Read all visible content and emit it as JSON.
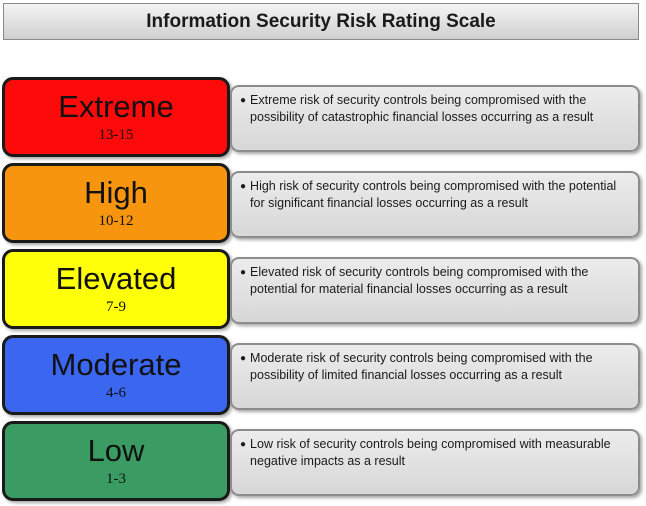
{
  "title": "Information Security Risk Rating Scale",
  "levels": [
    {
      "name": "Extreme",
      "range": "13-15",
      "color": "#ff0a0a",
      "description": "Extreme risk of security controls being compromised with the possibility of catastrophic financial losses occurring as a result"
    },
    {
      "name": "High",
      "range": "10-12",
      "color": "#f7950f",
      "description": "High risk of security controls being compromised with the potential for significant financial losses occurring as a result"
    },
    {
      "name": "Elevated",
      "range": "7-9",
      "color": "#ffff0a",
      "description": "Elevated risk of security controls being compromised with the potential  for material financial losses occurring as a result"
    },
    {
      "name": "Moderate",
      "range": "4-6",
      "color": "#3a66f0",
      "description": "Moderate risk of security controls being compromised with the possibility of limited financial losses occurring as a result"
    },
    {
      "name": "Low",
      "range": "1-3",
      "color": "#3a9c63",
      "description": "Low risk of security controls being compromised with measurable negative impacts as a result"
    }
  ]
}
